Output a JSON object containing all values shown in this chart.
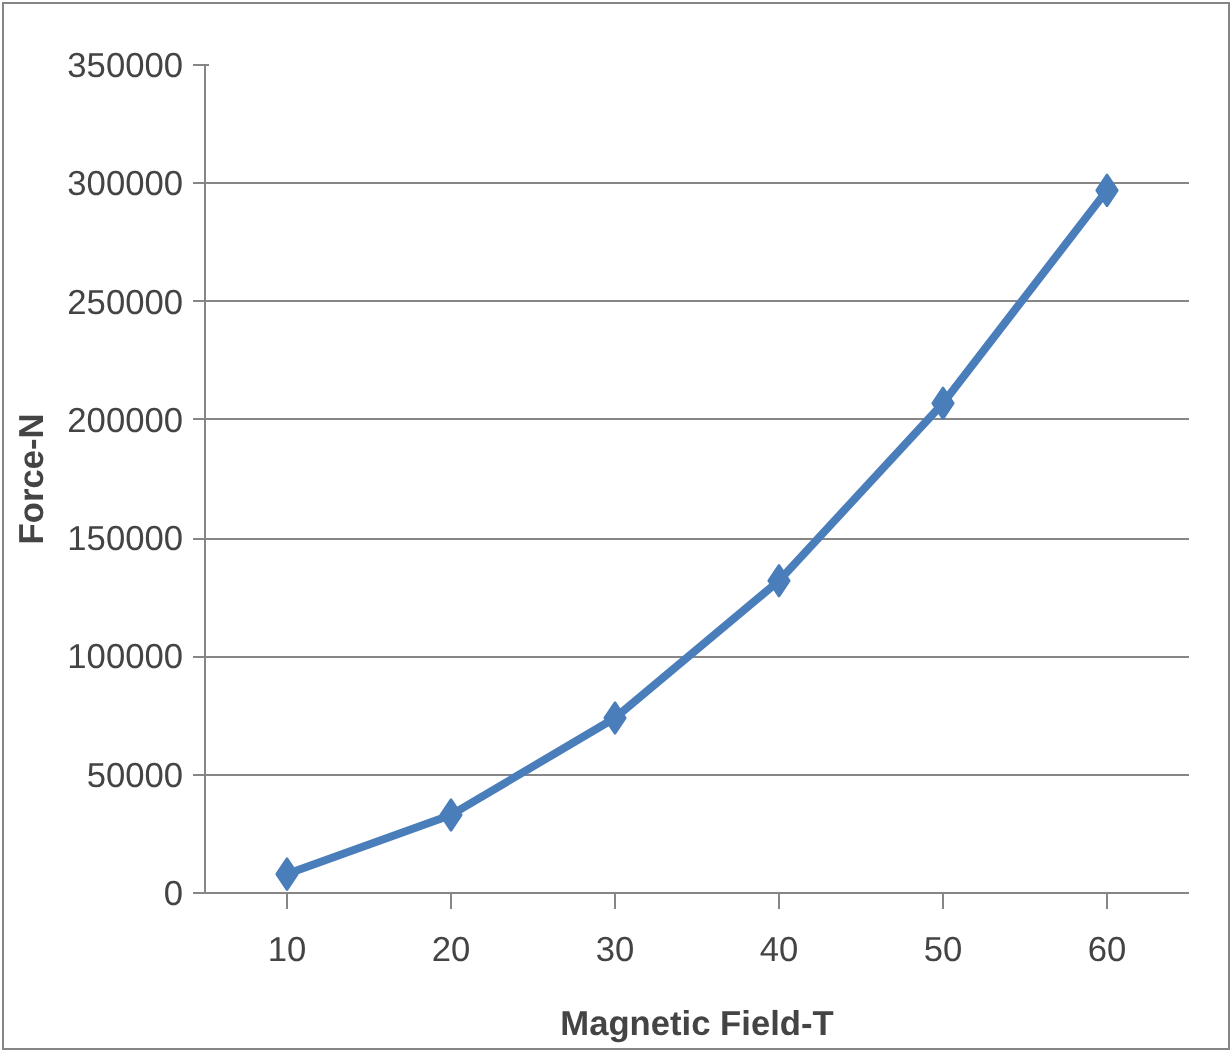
{
  "chart_data": {
    "type": "line",
    "xlabel": "Magnetic Field-T",
    "ylabel": "Force-N",
    "categories": [
      "10",
      "20",
      "30",
      "40",
      "50",
      "60"
    ],
    "series": [
      {
        "color": "#4a7ebb",
        "values": [
          8000,
          33000,
          74000,
          132000,
          207000,
          297000
        ]
      }
    ],
    "ylim": [
      0,
      350000
    ],
    "yticks": [
      0,
      50000,
      100000,
      150000,
      200000,
      250000,
      300000,
      350000
    ],
    "grid": "y",
    "marker": "diamond",
    "line_style": "solid"
  }
}
